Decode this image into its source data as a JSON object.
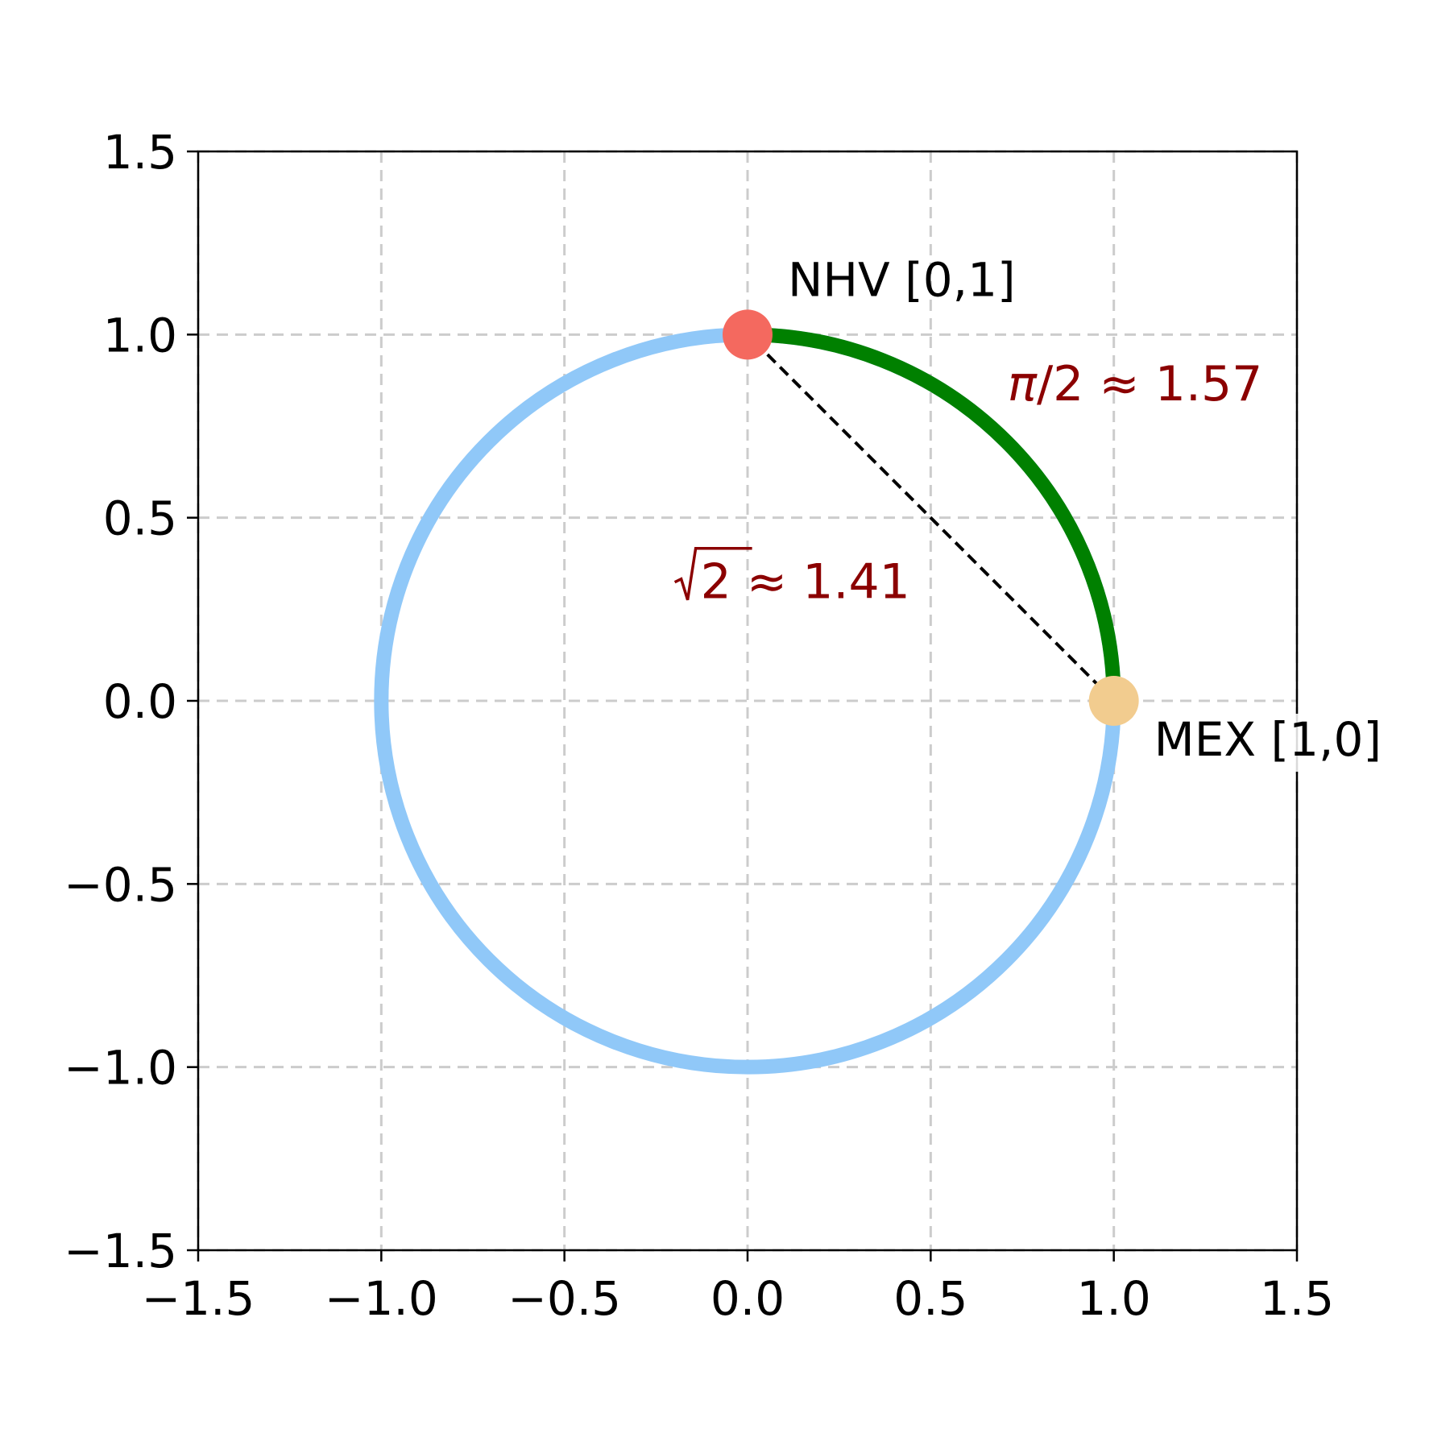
{
  "chart_data": {
    "type": "scatter",
    "title": "",
    "xlabel": "",
    "ylabel": "",
    "xlim": [
      -1.5,
      1.5
    ],
    "ylim": [
      -1.5,
      1.5
    ],
    "grid": true,
    "xticks": [
      -1.5,
      -1.0,
      -0.5,
      0.0,
      0.5,
      1.0,
      1.5
    ],
    "yticks": [
      -1.5,
      -1.0,
      -0.5,
      0.0,
      0.5,
      1.0,
      1.5
    ],
    "xtick_labels": [
      "−1.5",
      "−1.0",
      "−0.5",
      "0.0",
      "0.5",
      "1.0",
      "1.5"
    ],
    "ytick_labels": [
      "−1.5",
      "−1.0",
      "−0.5",
      "0.0",
      "0.5",
      "1.0",
      "1.5"
    ],
    "circle": {
      "center": [
        0,
        0
      ],
      "radius": 1,
      "color": "#90c8f8"
    },
    "arc": {
      "from_angle_deg": 0,
      "to_angle_deg": 90,
      "radius": 1,
      "color": "#008000"
    },
    "chord": {
      "from": [
        1,
        0
      ],
      "to": [
        0,
        1
      ],
      "style": "dashed",
      "color": "#000000"
    },
    "points": [
      {
        "label": "NHV [0,1]",
        "x": 0,
        "y": 1,
        "color": "#f4695f"
      },
      {
        "label": "MEX [1,0]",
        "x": 1,
        "y": 0,
        "color": "#f2cc8f"
      }
    ],
    "annotations": {
      "arc_text": {
        "prefix": "π",
        "suffix": "/2 ≈ 1.57",
        "x": 0.71,
        "y": 0.82
      },
      "chord_text": {
        "radicand": "2",
        "suffix": " ≈ 1.41",
        "x": -0.19,
        "y": 0.28
      },
      "color": "#8b0000"
    }
  }
}
